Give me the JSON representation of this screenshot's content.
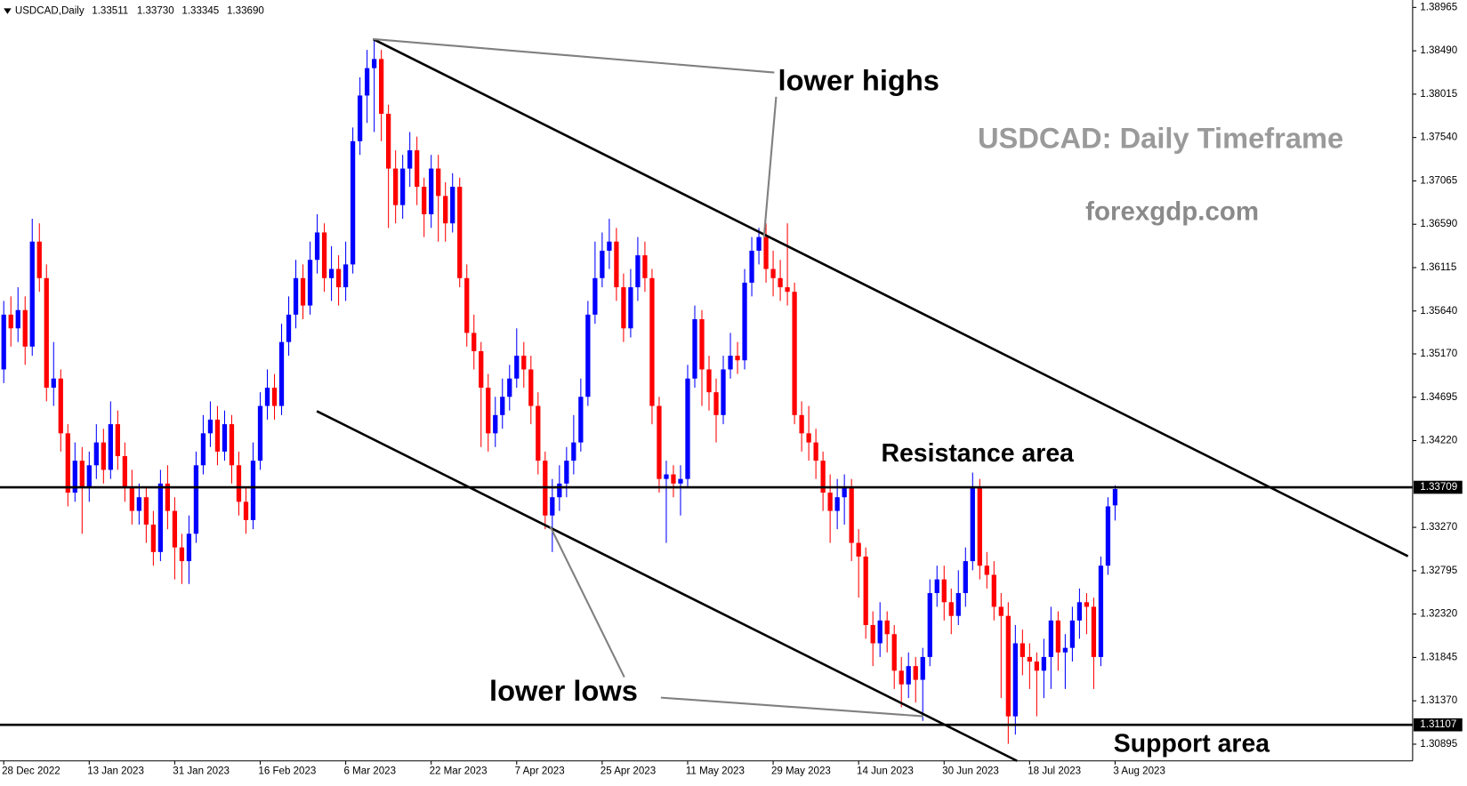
{
  "chart_data": {
    "type": "candlestick",
    "symbol": "USDCAD,Daily",
    "ohlc_labels": [
      "1.33511",
      "1.33730",
      "1.33345",
      "1.33690"
    ],
    "title": "USDCAD: Daily Timeframe",
    "subtitle": "forexgdp.com",
    "annotations": [
      "lower highs",
      "lower lows",
      "Resistance area",
      "Support area"
    ],
    "up_color": "#0000ff",
    "down_color": "#ff0000",
    "ylim": [
      1.30712,
      1.39026
    ],
    "yticks": [
      1.38965,
      {
        "value": 1.3849,
        "label": "1.38490"
      },
      1.38015,
      {
        "value": 1.3754,
        "label": "1.37540"
      },
      1.37065,
      {
        "value": 1.3659,
        "label": "1.36590"
      },
      1.36115,
      {
        "value": 1.3564,
        "label": "1.35640"
      },
      {
        "value": 1.3517,
        "label": "1.35170"
      },
      1.34695,
      {
        "value": 1.3422,
        "label": "1.34220"
      },
      {
        "value": 1.3327,
        "label": "1.33270"
      },
      1.32795,
      {
        "value": 1.3232,
        "label": "1.32320"
      },
      1.31845,
      {
        "value": 1.3137,
        "label": "1.31370"
      },
      1.30895
    ],
    "hlines": [
      1.33709,
      1.31107
    ],
    "categories": [
      "28 Dec 2022",
      null,
      null,
      null,
      null,
      null,
      null,
      null,
      null,
      null,
      null,
      null,
      "13 Jan 2023",
      null,
      null,
      null,
      null,
      null,
      null,
      null,
      null,
      null,
      null,
      null,
      "31 Jan 2023",
      null,
      null,
      null,
      null,
      null,
      null,
      null,
      null,
      null,
      null,
      null,
      "16 Feb 2023",
      null,
      null,
      null,
      null,
      null,
      null,
      null,
      null,
      null,
      null,
      null,
      "6 Mar 2023",
      null,
      null,
      null,
      null,
      null,
      null,
      null,
      null,
      null,
      null,
      null,
      "22 Mar 2023",
      null,
      null,
      null,
      null,
      null,
      null,
      null,
      null,
      null,
      null,
      null,
      "7 Apr 2023",
      null,
      null,
      null,
      null,
      null,
      null,
      null,
      null,
      null,
      null,
      null,
      "25 Apr 2023",
      null,
      null,
      null,
      null,
      null,
      null,
      null,
      null,
      null,
      null,
      null,
      "11 May 2023",
      null,
      null,
      null,
      null,
      null,
      null,
      null,
      null,
      null,
      null,
      null,
      "29 May 2023",
      null,
      null,
      null,
      null,
      null,
      null,
      null,
      null,
      null,
      null,
      null,
      "14 Jun 2023",
      null,
      null,
      null,
      null,
      null,
      null,
      null,
      null,
      null,
      null,
      null,
      "30 Jun 2023",
      null,
      null,
      null,
      null,
      null,
      null,
      null,
      null,
      null,
      null,
      null,
      "18 Jul 2023",
      null,
      null,
      null,
      null,
      null,
      null,
      null,
      null,
      null,
      null,
      null,
      "3 Aug 2023"
    ],
    "candles": [
      [
        1.35,
        1.3575,
        1.3485,
        1.356
      ],
      [
        1.356,
        1.358,
        1.3525,
        1.3545
      ],
      [
        1.3545,
        1.359,
        1.353,
        1.3565
      ],
      [
        1.3565,
        1.358,
        1.3505,
        1.3525
      ],
      [
        1.3525,
        1.3665,
        1.3515,
        1.364
      ],
      [
        1.364,
        1.366,
        1.3585,
        1.36
      ],
      [
        1.36,
        1.3615,
        1.3465,
        1.348
      ],
      [
        1.348,
        1.353,
        1.346,
        1.349
      ],
      [
        1.349,
        1.35,
        1.341,
        1.343
      ],
      [
        1.343,
        1.344,
        1.335,
        1.3365
      ],
      [
        1.3365,
        1.342,
        1.3355,
        1.34
      ],
      [
        1.34,
        1.3415,
        1.332,
        1.337
      ],
      [
        1.337,
        1.341,
        1.3355,
        1.3395
      ],
      [
        1.3395,
        1.344,
        1.338,
        1.342
      ],
      [
        1.342,
        1.3435,
        1.3375,
        1.339
      ],
      [
        1.339,
        1.3465,
        1.338,
        1.344
      ],
      [
        1.344,
        1.3455,
        1.339,
        1.3405
      ],
      [
        1.3405,
        1.342,
        1.3355,
        1.337
      ],
      [
        1.337,
        1.339,
        1.333,
        1.3345
      ],
      [
        1.3345,
        1.3375,
        1.333,
        1.336
      ],
      [
        1.336,
        1.337,
        1.331,
        1.333
      ],
      [
        1.333,
        1.3345,
        1.3285,
        1.33
      ],
      [
        1.33,
        1.339,
        1.329,
        1.3375
      ],
      [
        1.3375,
        1.3395,
        1.3325,
        1.3345
      ],
      [
        1.3345,
        1.336,
        1.327,
        1.3305
      ],
      [
        1.3305,
        1.332,
        1.3265,
        1.329
      ],
      [
        1.329,
        1.334,
        1.3265,
        1.332
      ],
      [
        1.332,
        1.341,
        1.331,
        1.3395
      ],
      [
        1.3395,
        1.345,
        1.3385,
        1.343
      ],
      [
        1.343,
        1.3465,
        1.3415,
        1.3445
      ],
      [
        1.3445,
        1.346,
        1.3395,
        1.341
      ],
      [
        1.341,
        1.3455,
        1.34,
        1.344
      ],
      [
        1.344,
        1.345,
        1.3375,
        1.3395
      ],
      [
        1.3395,
        1.341,
        1.334,
        1.3355
      ],
      [
        1.3355,
        1.337,
        1.332,
        1.3335
      ],
      [
        1.3335,
        1.342,
        1.3325,
        1.34
      ],
      [
        1.34,
        1.3475,
        1.339,
        1.346
      ],
      [
        1.346,
        1.35,
        1.3445,
        1.348
      ],
      [
        1.348,
        1.3495,
        1.3445,
        1.346
      ],
      [
        1.346,
        1.355,
        1.345,
        1.353
      ],
      [
        1.353,
        1.358,
        1.3515,
        1.356
      ],
      [
        1.356,
        1.362,
        1.3545,
        1.36
      ],
      [
        1.36,
        1.3615,
        1.3555,
        1.357
      ],
      [
        1.357,
        1.364,
        1.356,
        1.362
      ],
      [
        1.362,
        1.367,
        1.3605,
        1.365
      ],
      [
        1.365,
        1.366,
        1.3585,
        1.36
      ],
      [
        1.36,
        1.3635,
        1.3575,
        1.361
      ],
      [
        1.361,
        1.3625,
        1.357,
        1.359
      ],
      [
        1.359,
        1.364,
        1.3575,
        1.3615
      ],
      [
        1.3615,
        1.3765,
        1.3605,
        1.375
      ],
      [
        1.375,
        1.382,
        1.3735,
        1.38
      ],
      [
        1.38,
        1.385,
        1.377,
        1.383
      ],
      [
        1.383,
        1.3862,
        1.376,
        1.384
      ],
      [
        1.384,
        1.385,
        1.375,
        1.378
      ],
      [
        1.378,
        1.379,
        1.3655,
        1.372
      ],
      [
        1.372,
        1.374,
        1.366,
        1.368
      ],
      [
        1.368,
        1.3735,
        1.3665,
        1.372
      ],
      [
        1.372,
        1.376,
        1.37,
        1.374
      ],
      [
        1.374,
        1.3755,
        1.368,
        1.37
      ],
      [
        1.37,
        1.371,
        1.3645,
        1.367
      ],
      [
        1.367,
        1.3735,
        1.3655,
        1.372
      ],
      [
        1.372,
        1.3735,
        1.364,
        1.369
      ],
      [
        1.369,
        1.3705,
        1.364,
        1.366
      ],
      [
        1.366,
        1.3715,
        1.365,
        1.37
      ],
      [
        1.37,
        1.371,
        1.359,
        1.36
      ],
      [
        1.36,
        1.3615,
        1.3525,
        1.354
      ],
      [
        1.354,
        1.356,
        1.35,
        1.352
      ],
      [
        1.352,
        1.353,
        1.3415,
        1.348
      ],
      [
        1.348,
        1.3495,
        1.341,
        1.343
      ],
      [
        1.343,
        1.347,
        1.3415,
        1.345
      ],
      [
        1.345,
        1.349,
        1.3435,
        1.347
      ],
      [
        1.347,
        1.3505,
        1.3455,
        1.349
      ],
      [
        1.349,
        1.3545,
        1.348,
        1.3515
      ],
      [
        1.3515,
        1.353,
        1.348,
        1.35
      ],
      [
        1.35,
        1.3515,
        1.344,
        1.346
      ],
      [
        1.346,
        1.3475,
        1.3385,
        1.34
      ],
      [
        1.34,
        1.341,
        1.3325,
        1.334
      ],
      [
        1.334,
        1.338,
        1.33,
        1.336
      ],
      [
        1.336,
        1.3395,
        1.3345,
        1.3375
      ],
      [
        1.3375,
        1.3415,
        1.336,
        1.34
      ],
      [
        1.34,
        1.345,
        1.3385,
        1.342
      ],
      [
        1.342,
        1.349,
        1.341,
        1.347
      ],
      [
        1.347,
        1.3575,
        1.346,
        1.356
      ],
      [
        1.356,
        1.364,
        1.355,
        1.36
      ],
      [
        1.36,
        1.365,
        1.359,
        1.363
      ],
      [
        1.363,
        1.3665,
        1.361,
        1.364
      ],
      [
        1.364,
        1.3655,
        1.3575,
        1.359
      ],
      [
        1.359,
        1.3605,
        1.353,
        1.3545
      ],
      [
        1.3545,
        1.361,
        1.3535,
        1.359
      ],
      [
        1.359,
        1.3645,
        1.3575,
        1.3625
      ],
      [
        1.3625,
        1.364,
        1.3585,
        1.36
      ],
      [
        1.36,
        1.361,
        1.344,
        1.346
      ],
      [
        1.346,
        1.347,
        1.3365,
        1.338
      ],
      [
        1.338,
        1.34,
        1.331,
        1.3385
      ],
      [
        1.3385,
        1.3395,
        1.336,
        1.3375
      ],
      [
        1.3375,
        1.3395,
        1.334,
        1.338
      ],
      [
        1.338,
        1.3505,
        1.337,
        1.349
      ],
      [
        1.349,
        1.357,
        1.348,
        1.3555
      ],
      [
        1.3555,
        1.3565,
        1.346,
        1.35
      ],
      [
        1.35,
        1.3515,
        1.3455,
        1.3475
      ],
      [
        1.3475,
        1.349,
        1.342,
        1.345
      ],
      [
        1.345,
        1.3515,
        1.344,
        1.35
      ],
      [
        1.35,
        1.354,
        1.349,
        1.3515
      ],
      [
        1.3515,
        1.353,
        1.3495,
        1.351
      ],
      [
        1.351,
        1.361,
        1.35,
        1.3595
      ],
      [
        1.3595,
        1.3645,
        1.358,
        1.363
      ],
      [
        1.363,
        1.3655,
        1.3615,
        1.3645
      ],
      [
        1.3645,
        1.366,
        1.3595,
        1.361
      ],
      [
        1.361,
        1.363,
        1.358,
        1.36
      ],
      [
        1.36,
        1.362,
        1.3575,
        1.359
      ],
      [
        1.359,
        1.366,
        1.357,
        1.3585
      ],
      [
        1.3585,
        1.3595,
        1.344,
        1.345
      ],
      [
        1.345,
        1.3465,
        1.341,
        1.343
      ],
      [
        1.343,
        1.346,
        1.34,
        1.342
      ],
      [
        1.342,
        1.3435,
        1.338,
        1.34
      ],
      [
        1.34,
        1.341,
        1.3345,
        1.3365
      ],
      [
        1.3365,
        1.3385,
        1.331,
        1.3345
      ],
      [
        1.3345,
        1.338,
        1.3325,
        1.336
      ],
      [
        1.336,
        1.3385,
        1.333,
        1.337
      ],
      [
        1.337,
        1.338,
        1.329,
        1.331
      ],
      [
        1.331,
        1.3325,
        1.325,
        1.3295
      ],
      [
        1.3295,
        1.3305,
        1.3205,
        1.322
      ],
      [
        1.322,
        1.3235,
        1.3175,
        1.32
      ],
      [
        1.32,
        1.3245,
        1.3185,
        1.3225
      ],
      [
        1.3225,
        1.3235,
        1.319,
        1.321
      ],
      [
        1.321,
        1.322,
        1.315,
        1.317
      ],
      [
        1.317,
        1.3185,
        1.313,
        1.3155
      ],
      [
        1.3155,
        1.319,
        1.314,
        1.3175
      ],
      [
        1.3175,
        1.3185,
        1.3135,
        1.316
      ],
      [
        1.316,
        1.3195,
        1.3115,
        1.3185
      ],
      [
        1.3185,
        1.327,
        1.3175,
        1.3255
      ],
      [
        1.3255,
        1.3285,
        1.324,
        1.327
      ],
      [
        1.327,
        1.3285,
        1.3225,
        1.3245
      ],
      [
        1.3245,
        1.326,
        1.321,
        1.323
      ],
      [
        1.323,
        1.328,
        1.322,
        1.3255
      ],
      [
        1.3255,
        1.3305,
        1.324,
        1.329
      ],
      [
        1.329,
        1.3387,
        1.328,
        1.337
      ],
      [
        1.337,
        1.338,
        1.327,
        1.3285
      ],
      [
        1.3285,
        1.33,
        1.326,
        1.3275
      ],
      [
        1.3275,
        1.329,
        1.3225,
        1.324
      ],
      [
        1.324,
        1.3255,
        1.314,
        1.323
      ],
      [
        1.323,
        1.3245,
        1.309,
        1.312
      ],
      [
        1.312,
        1.322,
        1.31,
        1.32
      ],
      [
        1.32,
        1.3215,
        1.3165,
        1.3185
      ],
      [
        1.3185,
        1.32,
        1.315,
        1.318
      ],
      [
        1.318,
        1.319,
        1.312,
        1.317
      ],
      [
        1.317,
        1.3205,
        1.314,
        1.3185
      ],
      [
        1.3185,
        1.324,
        1.315,
        1.3225
      ],
      [
        1.3225,
        1.3235,
        1.317,
        1.319
      ],
      [
        1.319,
        1.321,
        1.315,
        1.3195
      ],
      [
        1.3195,
        1.324,
        1.318,
        1.3225
      ],
      [
        1.3225,
        1.326,
        1.3205,
        1.3245
      ],
      [
        1.3245,
        1.3255,
        1.321,
        1.324
      ],
      [
        1.324,
        1.325,
        1.315,
        1.3185
      ],
      [
        1.3185,
        1.3295,
        1.3175,
        1.3285
      ],
      [
        1.3285,
        1.336,
        1.3275,
        1.335
      ],
      [
        1.33511,
        1.3373,
        1.33345,
        1.3369
      ]
    ]
  }
}
